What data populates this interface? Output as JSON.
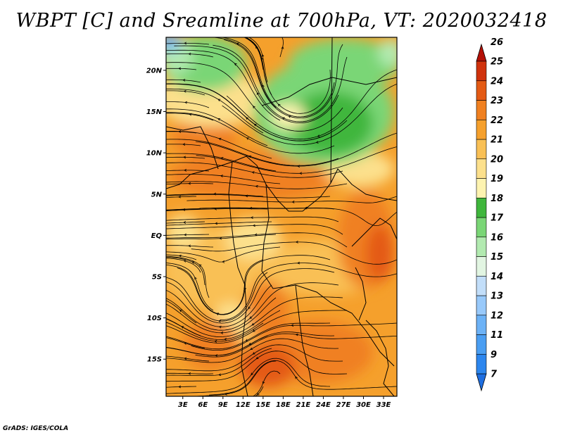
{
  "title": "WBPT [C] and Sreamline at 700hPa, VT: 2020032418",
  "credit": "GrADS: IGES/COLA",
  "map": {
    "lat_labels": [
      {
        "label": "20N",
        "lat": 20
      },
      {
        "label": "15N",
        "lat": 15
      },
      {
        "label": "10N",
        "lat": 10
      },
      {
        "label": "5N",
        "lat": 5
      },
      {
        "label": "EQ",
        "lat": 0
      },
      {
        "label": "5S",
        "lat": -5
      },
      {
        "label": "10S",
        "lat": -10
      },
      {
        "label": "15S",
        "lat": -15
      }
    ],
    "lon_labels": [
      {
        "label": "3E",
        "lon": 3
      },
      {
        "label": "6E",
        "lon": 6
      },
      {
        "label": "9E",
        "lon": 9
      },
      {
        "label": "12E",
        "lon": 12
      },
      {
        "label": "15E",
        "lon": 15
      },
      {
        "label": "18E",
        "lon": 18
      },
      {
        "label": "21E",
        "lon": 21
      },
      {
        "label": "24E",
        "lon": 24
      },
      {
        "label": "27E",
        "lon": 27
      },
      {
        "label": "30E",
        "lon": 30
      },
      {
        "label": "33E",
        "lon": 33
      }
    ],
    "lon_range": [
      0.5,
      35
    ],
    "lat_range": [
      -19.5,
      24
    ]
  },
  "colorbar": {
    "levels": [
      "7",
      "9",
      "11",
      "12",
      "13",
      "14",
      "15",
      "16",
      "17",
      "18",
      "19",
      "20",
      "21",
      "22",
      "23",
      "24",
      "25",
      "26"
    ],
    "colors": [
      "#1e6ee0",
      "#2c86ee",
      "#4a9ef2",
      "#6cb2f6",
      "#98c9fa",
      "#c2def9",
      "#e2f5e2",
      "#b2eab0",
      "#7ad676",
      "#3fb63c",
      "#fdf3b0",
      "#fce08c",
      "#f9c055",
      "#f5a02c",
      "#f08020",
      "#e45a14",
      "#d0320c",
      "#b41006"
    ]
  }
}
